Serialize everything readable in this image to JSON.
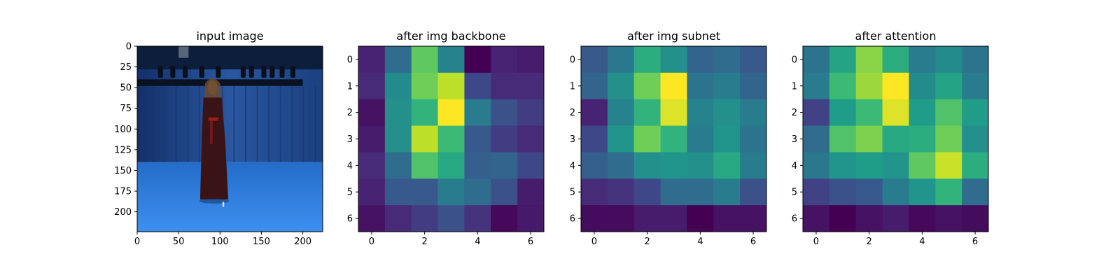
{
  "chart_data": [
    {
      "type": "image",
      "title": "input image",
      "xticks": [
        0,
        50,
        100,
        150,
        200
      ],
      "yticks": [
        0,
        25,
        50,
        75,
        100,
        125,
        150,
        175,
        200
      ],
      "xlim": [
        0,
        224
      ],
      "ylim": [
        224,
        0
      ],
      "image_description_colors": {
        "backdrop": "#1e3f7a",
        "floor": "#2f7fd8",
        "dress": "#3b1418",
        "rig": "#0b1424"
      }
    },
    {
      "type": "heatmap",
      "title": "after img backbone",
      "xticks": [
        0,
        2,
        4,
        6
      ],
      "yticks": [
        0,
        1,
        2,
        3,
        4,
        5,
        6
      ],
      "colormap": "viridis",
      "z": [
        [
          0.1,
          0.35,
          0.75,
          0.45,
          0.0,
          0.1,
          0.08
        ],
        [
          0.12,
          0.48,
          0.78,
          0.9,
          0.22,
          0.12,
          0.12
        ],
        [
          0.05,
          0.5,
          0.65,
          1.0,
          0.42,
          0.25,
          0.18
        ],
        [
          0.08,
          0.5,
          0.9,
          0.68,
          0.28,
          0.18,
          0.12
        ],
        [
          0.12,
          0.35,
          0.72,
          0.6,
          0.3,
          0.32,
          0.22
        ],
        [
          0.1,
          0.28,
          0.28,
          0.42,
          0.35,
          0.25,
          0.08
        ],
        [
          0.05,
          0.12,
          0.18,
          0.25,
          0.15,
          0.02,
          0.07
        ]
      ]
    },
    {
      "type": "heatmap",
      "title": "after img subnet",
      "xticks": [
        0,
        2,
        4,
        6
      ],
      "yticks": [
        0,
        1,
        2,
        3,
        4,
        5,
        6
      ],
      "colormap": "viridis",
      "z": [
        [
          0.28,
          0.4,
          0.62,
          0.5,
          0.32,
          0.35,
          0.28
        ],
        [
          0.32,
          0.5,
          0.78,
          1.0,
          0.38,
          0.42,
          0.32
        ],
        [
          0.1,
          0.45,
          0.65,
          0.95,
          0.45,
          0.5,
          0.42
        ],
        [
          0.22,
          0.52,
          0.78,
          0.65,
          0.42,
          0.52,
          0.38
        ],
        [
          0.3,
          0.35,
          0.5,
          0.52,
          0.5,
          0.6,
          0.42
        ],
        [
          0.12,
          0.15,
          0.22,
          0.35,
          0.35,
          0.42,
          0.25
        ],
        [
          0.03,
          0.03,
          0.08,
          0.08,
          0.0,
          0.05,
          0.05
        ]
      ]
    },
    {
      "type": "heatmap",
      "title": "after attention",
      "xticks": [
        0,
        2,
        4,
        6
      ],
      "yticks": [
        0,
        1,
        2,
        3,
        4,
        5,
        6
      ],
      "colormap": "viridis",
      "z": [
        [
          0.38,
          0.58,
          0.82,
          0.62,
          0.42,
          0.48,
          0.38
        ],
        [
          0.42,
          0.68,
          0.85,
          1.0,
          0.48,
          0.58,
          0.42
        ],
        [
          0.2,
          0.55,
          0.68,
          0.95,
          0.55,
          0.72,
          0.55
        ],
        [
          0.35,
          0.72,
          0.8,
          0.6,
          0.62,
          0.78,
          0.5
        ],
        [
          0.4,
          0.52,
          0.55,
          0.52,
          0.75,
          0.92,
          0.62
        ],
        [
          0.2,
          0.25,
          0.28,
          0.42,
          0.52,
          0.65,
          0.35
        ],
        [
          0.05,
          0.0,
          0.05,
          0.08,
          0.02,
          0.05,
          0.03
        ]
      ]
    }
  ]
}
